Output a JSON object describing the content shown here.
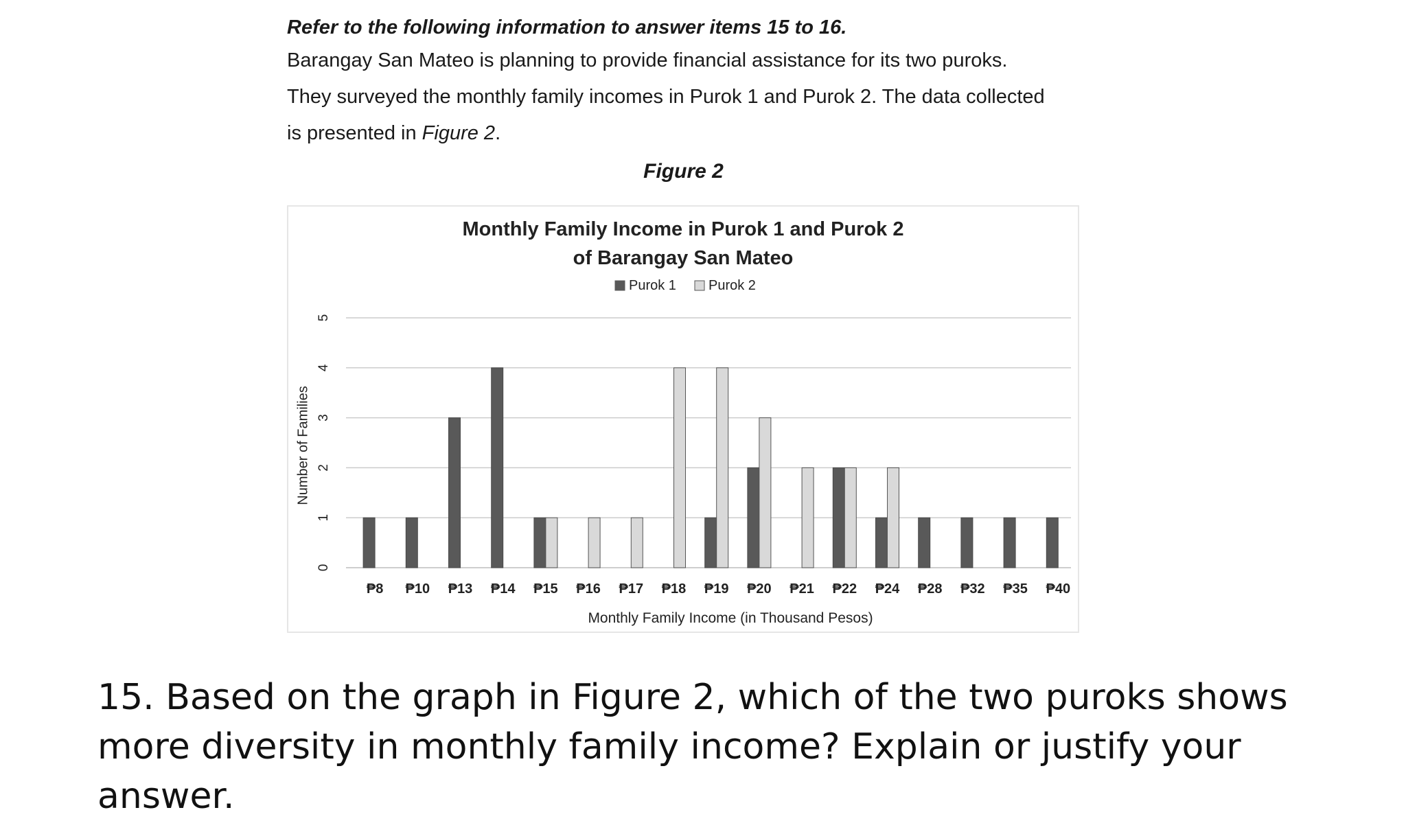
{
  "document": {
    "instruction": "Refer to the following information to answer items 15 to 16.",
    "paragraph_lines": [
      "Barangay San Mateo is planning to provide financial assistance for its two puroks.",
      "They surveyed the monthly family incomes in Purok 1 and Purok 2. The data collected"
    ],
    "paragraph_last_prefix": "is presented in ",
    "paragraph_last_ref": "Figure 2",
    "paragraph_last_suffix": ".",
    "figure_label": "Figure 2"
  },
  "chart_data": {
    "type": "bar",
    "title_lines": [
      "Monthly Family Income in Purok 1 and Purok 2",
      "of Barangay San Mateo"
    ],
    "xlabel": "Monthly Family Income (in Thousand Pesos)",
    "ylabel": "Number of Families",
    "ylim": [
      0,
      5
    ],
    "yticks": [
      0,
      1,
      2,
      3,
      4,
      5
    ],
    "grid": true,
    "legend_position": "top-center",
    "categories": [
      "₱8",
      "₱10",
      "₱13",
      "₱14",
      "₱15",
      "₱16",
      "₱17",
      "₱18",
      "₱19",
      "₱20",
      "₱21",
      "₱22",
      "₱24",
      "₱28",
      "₱32",
      "₱35",
      "₱40"
    ],
    "series": [
      {
        "name": "Purok 1",
        "color": "#595959",
        "values": [
          1,
          1,
          3,
          4,
          1,
          0,
          0,
          0,
          1,
          2,
          0,
          2,
          1,
          1,
          1,
          1,
          1
        ]
      },
      {
        "name": "Purok 2",
        "color": "#d9d9d9",
        "values": [
          0,
          0,
          0,
          0,
          1,
          1,
          1,
          4,
          4,
          3,
          2,
          2,
          2,
          0,
          0,
          0,
          0
        ]
      }
    ]
  },
  "question": {
    "text": "15. Based on the graph in Figure 2, which of the two puroks shows more diversity in monthly family income? Explain or justify your answer."
  }
}
